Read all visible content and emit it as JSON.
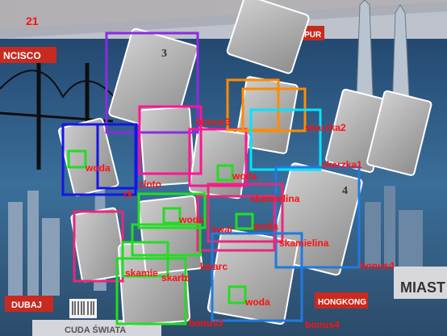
{
  "frame_number": "21",
  "board_captions": {
    "sf": "NCISCO",
    "kl": "KUALA LUMPUR",
    "dubai": "DUBAJ",
    "hongkong": "HONGKONG",
    "miasta": "MIAST",
    "wonders": "CUDA ŚWIATA"
  },
  "box_colors": {
    "purple": "#8a2be2",
    "blue": "#1515e8",
    "magenta": "#ff1493",
    "pink": "#e8287a",
    "orange": "#ff8c00",
    "cyan": "#00e5ff",
    "green": "#22dd22",
    "azure": "#1f7ae0",
    "label_red": "#ff1010"
  },
  "detections": [
    {
      "label": "",
      "color": "purple"
    },
    {
      "label": "woda",
      "color": "blue"
    },
    {
      "label": "",
      "color": "blue"
    },
    {
      "label": "",
      "color": "magenta"
    },
    {
      "label": "bonus3",
      "color": "magenta"
    },
    {
      "label": "",
      "color": "orange"
    },
    {
      "label": "",
      "color": "orange"
    },
    {
      "label": "skarzka2",
      "color": "cyan"
    },
    {
      "label": "skarzka1",
      "color": "azure"
    },
    {
      "label": "woda",
      "color": "green"
    },
    {
      "label": "zloto",
      "color": "green"
    },
    {
      "label": "zk",
      "color": "green"
    },
    {
      "label": "woda",
      "color": "green"
    },
    {
      "label": "woda",
      "color": "green"
    },
    {
      "label": "woda",
      "color": "green"
    },
    {
      "label": "skamielina",
      "color": "pink"
    },
    {
      "label": "skamielina",
      "color": "azure"
    },
    {
      "label": "bonus4",
      "color": "azure"
    },
    {
      "label": "skamie",
      "color": "green"
    },
    {
      "label": "skarb",
      "color": "green"
    },
    {
      "label": "rrc",
      "color": "green"
    },
    {
      "label": "kwarc",
      "color": "pink"
    },
    {
      "label": "swar",
      "color": "pink"
    },
    {
      "label": "bonus4",
      "color": "azure"
    },
    {
      "label": "woda",
      "color": "green"
    },
    {
      "label": "bonus3",
      "color": "green"
    },
    {
      "label": "",
      "color": "pink"
    }
  ],
  "card_numbers": [
    "3",
    "4"
  ]
}
